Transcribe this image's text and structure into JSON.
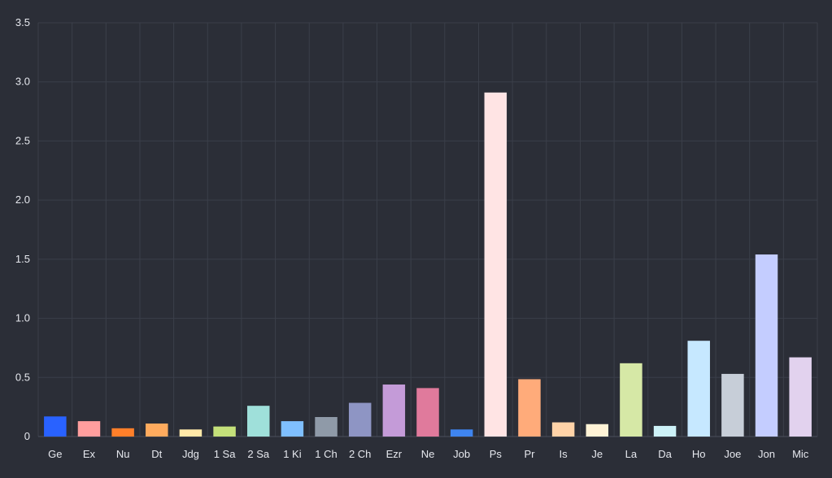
{
  "chart_data": {
    "type": "bar",
    "title": "",
    "xlabel": "",
    "ylabel": "",
    "ylim": [
      0,
      3.5
    ],
    "yticks": [
      "0",
      "0.5",
      "1.0",
      "1.5",
      "2.0",
      "2.5",
      "3.0",
      "3.5"
    ],
    "grid": true,
    "legend": "none",
    "categories": [
      "Ge",
      "Ex",
      "Nu",
      "Dt",
      "Jdg",
      "1 Sa",
      "2 Sa",
      "1 Ki",
      "1 Ch",
      "2 Ch",
      "Ezr",
      "Ne",
      "Job",
      "Ps",
      "Pr",
      "Is",
      "Je",
      "La",
      "Da",
      "Ho",
      "Joe",
      "Jon",
      "Mic"
    ],
    "values": [
      0.17,
      0.13,
      0.07,
      0.11,
      0.06,
      0.085,
      0.26,
      0.13,
      0.165,
      0.285,
      0.44,
      0.41,
      0.06,
      2.91,
      0.485,
      0.12,
      0.105,
      0.62,
      0.09,
      0.81,
      0.53,
      1.54,
      0.67
    ],
    "colors": [
      "#2962ff",
      "#ff9e9e",
      "#ff7f2a",
      "#ffab5e",
      "#ffe8a8",
      "#c4e07a",
      "#9fe0da",
      "#7fbfff",
      "#8f9aa8",
      "#8e95c4",
      "#c49bd8",
      "#e07a9c",
      "#3f85f0",
      "#ffe4e4",
      "#ffab7a",
      "#ffd3a8",
      "#fff3d6",
      "#d6e8a6",
      "#cdf2f8",
      "#c6e8ff",
      "#c7ced8",
      "#c4cdff",
      "#e2d2ee"
    ]
  }
}
